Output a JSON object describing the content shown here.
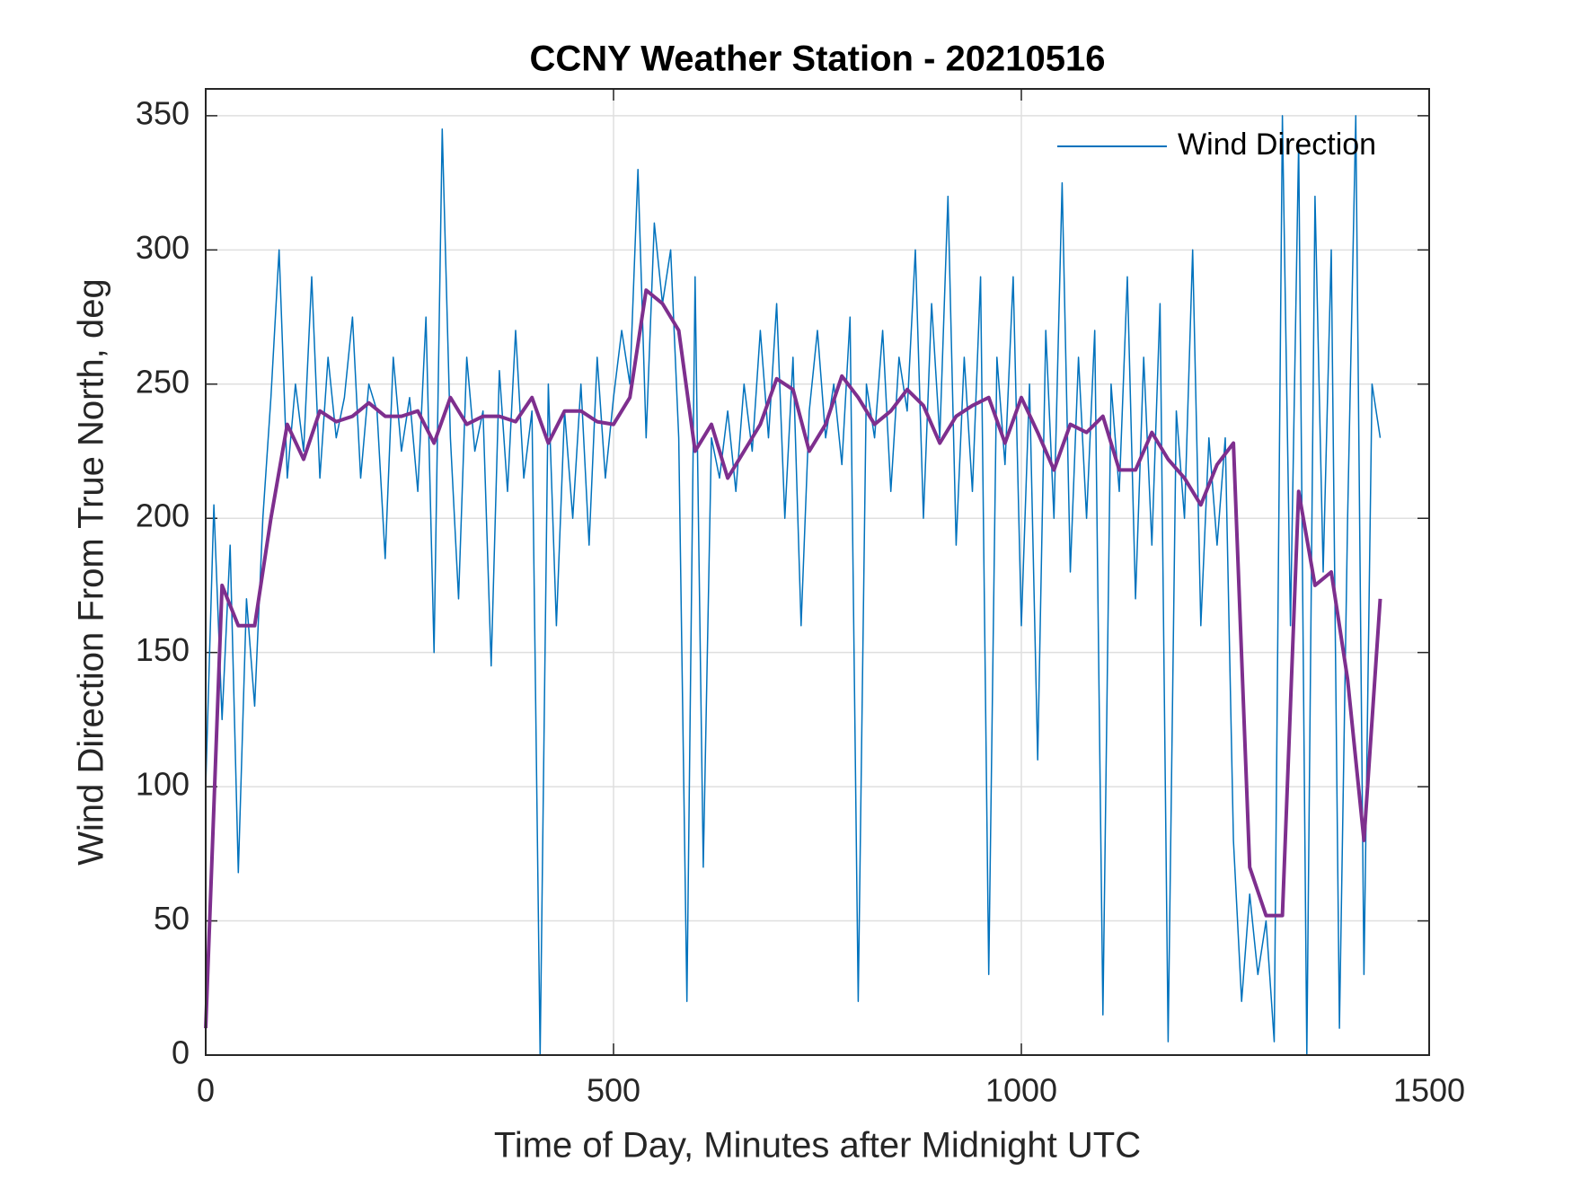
{
  "chart_data": {
    "type": "line",
    "title": "CCNY Weather Station - 20210516",
    "x_label": "Time of Day, Minutes after Midnight UTC",
    "y_label": "Wind Direction From True North, deg",
    "xlim": [
      0,
      1500
    ],
    "xticks": [
      0,
      500,
      1000,
      1500
    ],
    "ylim": [
      0,
      360
    ],
    "yticks": [
      0,
      50,
      100,
      150,
      200,
      250,
      300,
      350
    ],
    "grid": true,
    "legend": "northeast",
    "series": [
      {
        "name": "Wind Direction",
        "color": "#0072BD",
        "width": 1.5,
        "x": [
          0,
          10,
          20,
          30,
          40,
          50,
          60,
          70,
          80,
          90,
          100,
          110,
          120,
          130,
          140,
          150,
          160,
          170,
          180,
          190,
          200,
          210,
          220,
          230,
          240,
          250,
          260,
          270,
          280,
          290,
          300,
          310,
          320,
          330,
          340,
          350,
          360,
          370,
          380,
          390,
          400,
          410,
          420,
          430,
          440,
          450,
          460,
          470,
          480,
          490,
          500,
          510,
          520,
          530,
          540,
          550,
          560,
          570,
          580,
          590,
          600,
          610,
          620,
          630,
          640,
          650,
          660,
          670,
          680,
          690,
          700,
          710,
          720,
          730,
          740,
          750,
          760,
          770,
          780,
          790,
          800,
          810,
          820,
          830,
          840,
          850,
          860,
          870,
          880,
          890,
          900,
          910,
          920,
          930,
          940,
          950,
          960,
          970,
          980,
          990,
          1000,
          1010,
          1020,
          1030,
          1040,
          1050,
          1060,
          1070,
          1080,
          1090,
          1100,
          1110,
          1120,
          1130,
          1140,
          1150,
          1160,
          1170,
          1180,
          1190,
          1200,
          1210,
          1220,
          1230,
          1240,
          1250,
          1260,
          1270,
          1280,
          1290,
          1300,
          1310,
          1320,
          1330,
          1340,
          1350,
          1360,
          1370,
          1380,
          1390,
          1400,
          1410,
          1420,
          1430,
          1440
        ],
        "values": [
          100,
          205,
          125,
          190,
          68,
          170,
          130,
          200,
          245,
          300,
          215,
          250,
          225,
          290,
          215,
          260,
          230,
          245,
          275,
          215,
          250,
          240,
          185,
          260,
          225,
          245,
          210,
          275,
          150,
          345,
          230,
          170,
          260,
          225,
          240,
          145,
          255,
          210,
          270,
          215,
          240,
          0,
          250,
          160,
          240,
          200,
          250,
          190,
          260,
          215,
          245,
          270,
          250,
          330,
          230,
          310,
          280,
          300,
          230,
          20,
          290,
          70,
          230,
          215,
          240,
          210,
          250,
          225,
          270,
          230,
          280,
          200,
          260,
          160,
          240,
          270,
          230,
          250,
          220,
          275,
          20,
          250,
          230,
          270,
          210,
          260,
          240,
          300,
          200,
          280,
          230,
          320,
          190,
          260,
          210,
          290,
          30,
          260,
          220,
          290,
          160,
          250,
          110,
          270,
          200,
          325,
          180,
          260,
          200,
          270,
          15,
          250,
          210,
          290,
          170,
          260,
          190,
          280,
          5,
          240,
          200,
          300,
          160,
          230,
          190,
          230,
          80,
          20,
          60,
          30,
          50,
          5,
          350,
          160,
          340,
          0,
          320,
          180,
          300,
          10,
          200,
          350,
          30,
          250,
          230
        ]
      },
      {
        "color": "#7E2F8E",
        "width": 4,
        "x": [
          0,
          20,
          40,
          60,
          80,
          100,
          120,
          140,
          160,
          180,
          200,
          220,
          240,
          260,
          280,
          300,
          320,
          340,
          360,
          380,
          400,
          420,
          440,
          460,
          480,
          500,
          520,
          540,
          560,
          580,
          600,
          620,
          640,
          660,
          680,
          700,
          720,
          740,
          760,
          780,
          800,
          820,
          840,
          860,
          880,
          900,
          920,
          940,
          960,
          980,
          1000,
          1020,
          1040,
          1060,
          1080,
          1100,
          1120,
          1140,
          1160,
          1180,
          1200,
          1220,
          1240,
          1260,
          1280,
          1300,
          1320,
          1340,
          1360,
          1380,
          1400,
          1420,
          1440
        ],
        "values": [
          10,
          175,
          160,
          160,
          200,
          235,
          222,
          240,
          236,
          238,
          243,
          238,
          238,
          240,
          228,
          245,
          235,
          238,
          238,
          236,
          245,
          228,
          240,
          240,
          236,
          235,
          245,
          285,
          280,
          270,
          225,
          235,
          215,
          225,
          235,
          252,
          248,
          225,
          235,
          253,
          245,
          235,
          240,
          248,
          242,
          228,
          238,
          242,
          245,
          228,
          245,
          232,
          218,
          235,
          232,
          238,
          218,
          218,
          232,
          222,
          215,
          205,
          220,
          228,
          70,
          52,
          52,
          210,
          175,
          180,
          140,
          80,
          170
        ]
      }
    ]
  }
}
